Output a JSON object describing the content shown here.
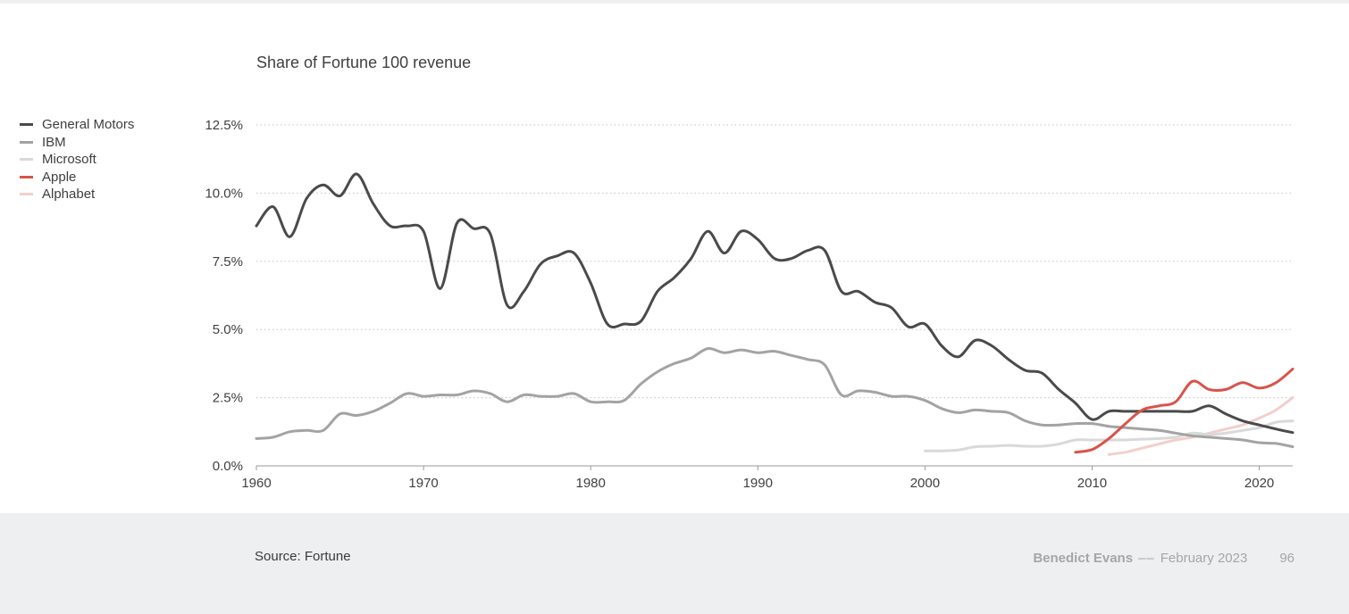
{
  "footer": {
    "source": "Source: Fortune",
    "author": "Benedict Evans",
    "separator": "––",
    "date": "February 2023",
    "page": "96"
  },
  "chart_data": {
    "type": "line",
    "title": "Share of Fortune 100 revenue",
    "xlabel": "",
    "ylabel": "",
    "xlim": [
      1960,
      2022
    ],
    "ylim": [
      0,
      12.5
    ],
    "x_ticks": [
      1960,
      1970,
      1980,
      1990,
      2000,
      2010,
      2020
    ],
    "y_ticks": [
      0,
      2.5,
      5,
      7.5,
      10,
      12.5
    ],
    "y_tick_labels": [
      "0.0%",
      "2.5%",
      "5.0%",
      "7.5%",
      "10.0%",
      "12.5%"
    ],
    "grid": "horizontal dotted",
    "legend_position": "left",
    "series": [
      {
        "name": "General Motors",
        "color": "#4a4a4a",
        "x": [
          1960,
          1961,
          1962,
          1963,
          1964,
          1965,
          1966,
          1967,
          1968,
          1969,
          1970,
          1971,
          1972,
          1973,
          1974,
          1975,
          1976,
          1977,
          1978,
          1979,
          1980,
          1981,
          1982,
          1983,
          1984,
          1985,
          1986,
          1987,
          1988,
          1989,
          1990,
          1991,
          1992,
          1993,
          1994,
          1995,
          1996,
          1997,
          1998,
          1999,
          2000,
          2001,
          2002,
          2003,
          2004,
          2005,
          2006,
          2007,
          2008,
          2009,
          2010,
          2011,
          2012,
          2013,
          2014,
          2015,
          2016,
          2017,
          2018,
          2019,
          2020,
          2021,
          2022
        ],
        "values": [
          8.8,
          9.5,
          8.4,
          9.8,
          10.3,
          9.9,
          10.7,
          9.6,
          8.8,
          8.8,
          8.6,
          6.5,
          8.9,
          8.7,
          8.5,
          5.9,
          6.4,
          7.4,
          7.7,
          7.8,
          6.7,
          5.2,
          5.2,
          5.3,
          6.4,
          6.9,
          7.6,
          8.6,
          7.8,
          8.6,
          8.3,
          7.6,
          7.6,
          7.9,
          7.9,
          6.4,
          6.4,
          6.0,
          5.8,
          5.1,
          5.2,
          4.4,
          4.0,
          4.6,
          4.4,
          3.9,
          3.5,
          3.4,
          2.8,
          2.3,
          1.7,
          2.0,
          2.0,
          2.0,
          2.0,
          2.0,
          2.0,
          2.2,
          1.9,
          1.65,
          1.5,
          1.35,
          1.22
        ]
      },
      {
        "name": "IBM",
        "color": "#a3a3a3",
        "x": [
          1960,
          1961,
          1962,
          1963,
          1964,
          1965,
          1966,
          1967,
          1968,
          1969,
          1970,
          1971,
          1972,
          1973,
          1974,
          1975,
          1976,
          1977,
          1978,
          1979,
          1980,
          1981,
          1982,
          1983,
          1984,
          1985,
          1986,
          1987,
          1988,
          1989,
          1990,
          1991,
          1992,
          1993,
          1994,
          1995,
          1996,
          1997,
          1998,
          1999,
          2000,
          2001,
          2002,
          2003,
          2004,
          2005,
          2006,
          2007,
          2008,
          2009,
          2010,
          2011,
          2012,
          2013,
          2014,
          2015,
          2016,
          2017,
          2018,
          2019,
          2020,
          2021,
          2022
        ],
        "values": [
          1.0,
          1.05,
          1.25,
          1.3,
          1.3,
          1.9,
          1.85,
          2.0,
          2.3,
          2.65,
          2.55,
          2.6,
          2.6,
          2.75,
          2.65,
          2.35,
          2.6,
          2.55,
          2.55,
          2.65,
          2.35,
          2.35,
          2.4,
          3.0,
          3.45,
          3.75,
          3.95,
          4.3,
          4.15,
          4.25,
          4.15,
          4.2,
          4.05,
          3.9,
          3.7,
          2.6,
          2.75,
          2.7,
          2.55,
          2.55,
          2.4,
          2.1,
          1.95,
          2.05,
          2.0,
          1.95,
          1.65,
          1.5,
          1.5,
          1.55,
          1.55,
          1.45,
          1.4,
          1.35,
          1.3,
          1.2,
          1.1,
          1.05,
          1.0,
          0.95,
          0.85,
          0.82,
          0.7
        ]
      },
      {
        "name": "Microsoft",
        "color": "#d9d9d9",
        "x": [
          2000,
          2001,
          2002,
          2003,
          2004,
          2005,
          2006,
          2007,
          2008,
          2009,
          2010,
          2011,
          2012,
          2013,
          2014,
          2015,
          2016,
          2017,
          2018,
          2019,
          2020,
          2021,
          2022
        ],
        "values": [
          0.55,
          0.55,
          0.58,
          0.7,
          0.72,
          0.75,
          0.72,
          0.72,
          0.8,
          0.95,
          0.95,
          0.95,
          0.95,
          0.98,
          1.0,
          1.05,
          1.2,
          1.15,
          1.2,
          1.3,
          1.4,
          1.6,
          1.65
        ]
      },
      {
        "name": "Apple",
        "color": "#d9534a",
        "x": [
          2009,
          2010,
          2011,
          2012,
          2013,
          2014,
          2015,
          2016,
          2017,
          2018,
          2019,
          2020,
          2021,
          2022
        ],
        "values": [
          0.5,
          0.6,
          1.0,
          1.55,
          2.05,
          2.2,
          2.35,
          3.1,
          2.8,
          2.8,
          3.05,
          2.85,
          3.05,
          3.55
        ]
      },
      {
        "name": "Alphabet",
        "color": "#f2cfcc",
        "x": [
          2011,
          2012,
          2013,
          2014,
          2015,
          2016,
          2017,
          2018,
          2019,
          2020,
          2021,
          2022
        ],
        "values": [
          0.42,
          0.5,
          0.65,
          0.8,
          0.95,
          1.05,
          1.2,
          1.35,
          1.5,
          1.75,
          2.05,
          2.5
        ]
      }
    ]
  }
}
